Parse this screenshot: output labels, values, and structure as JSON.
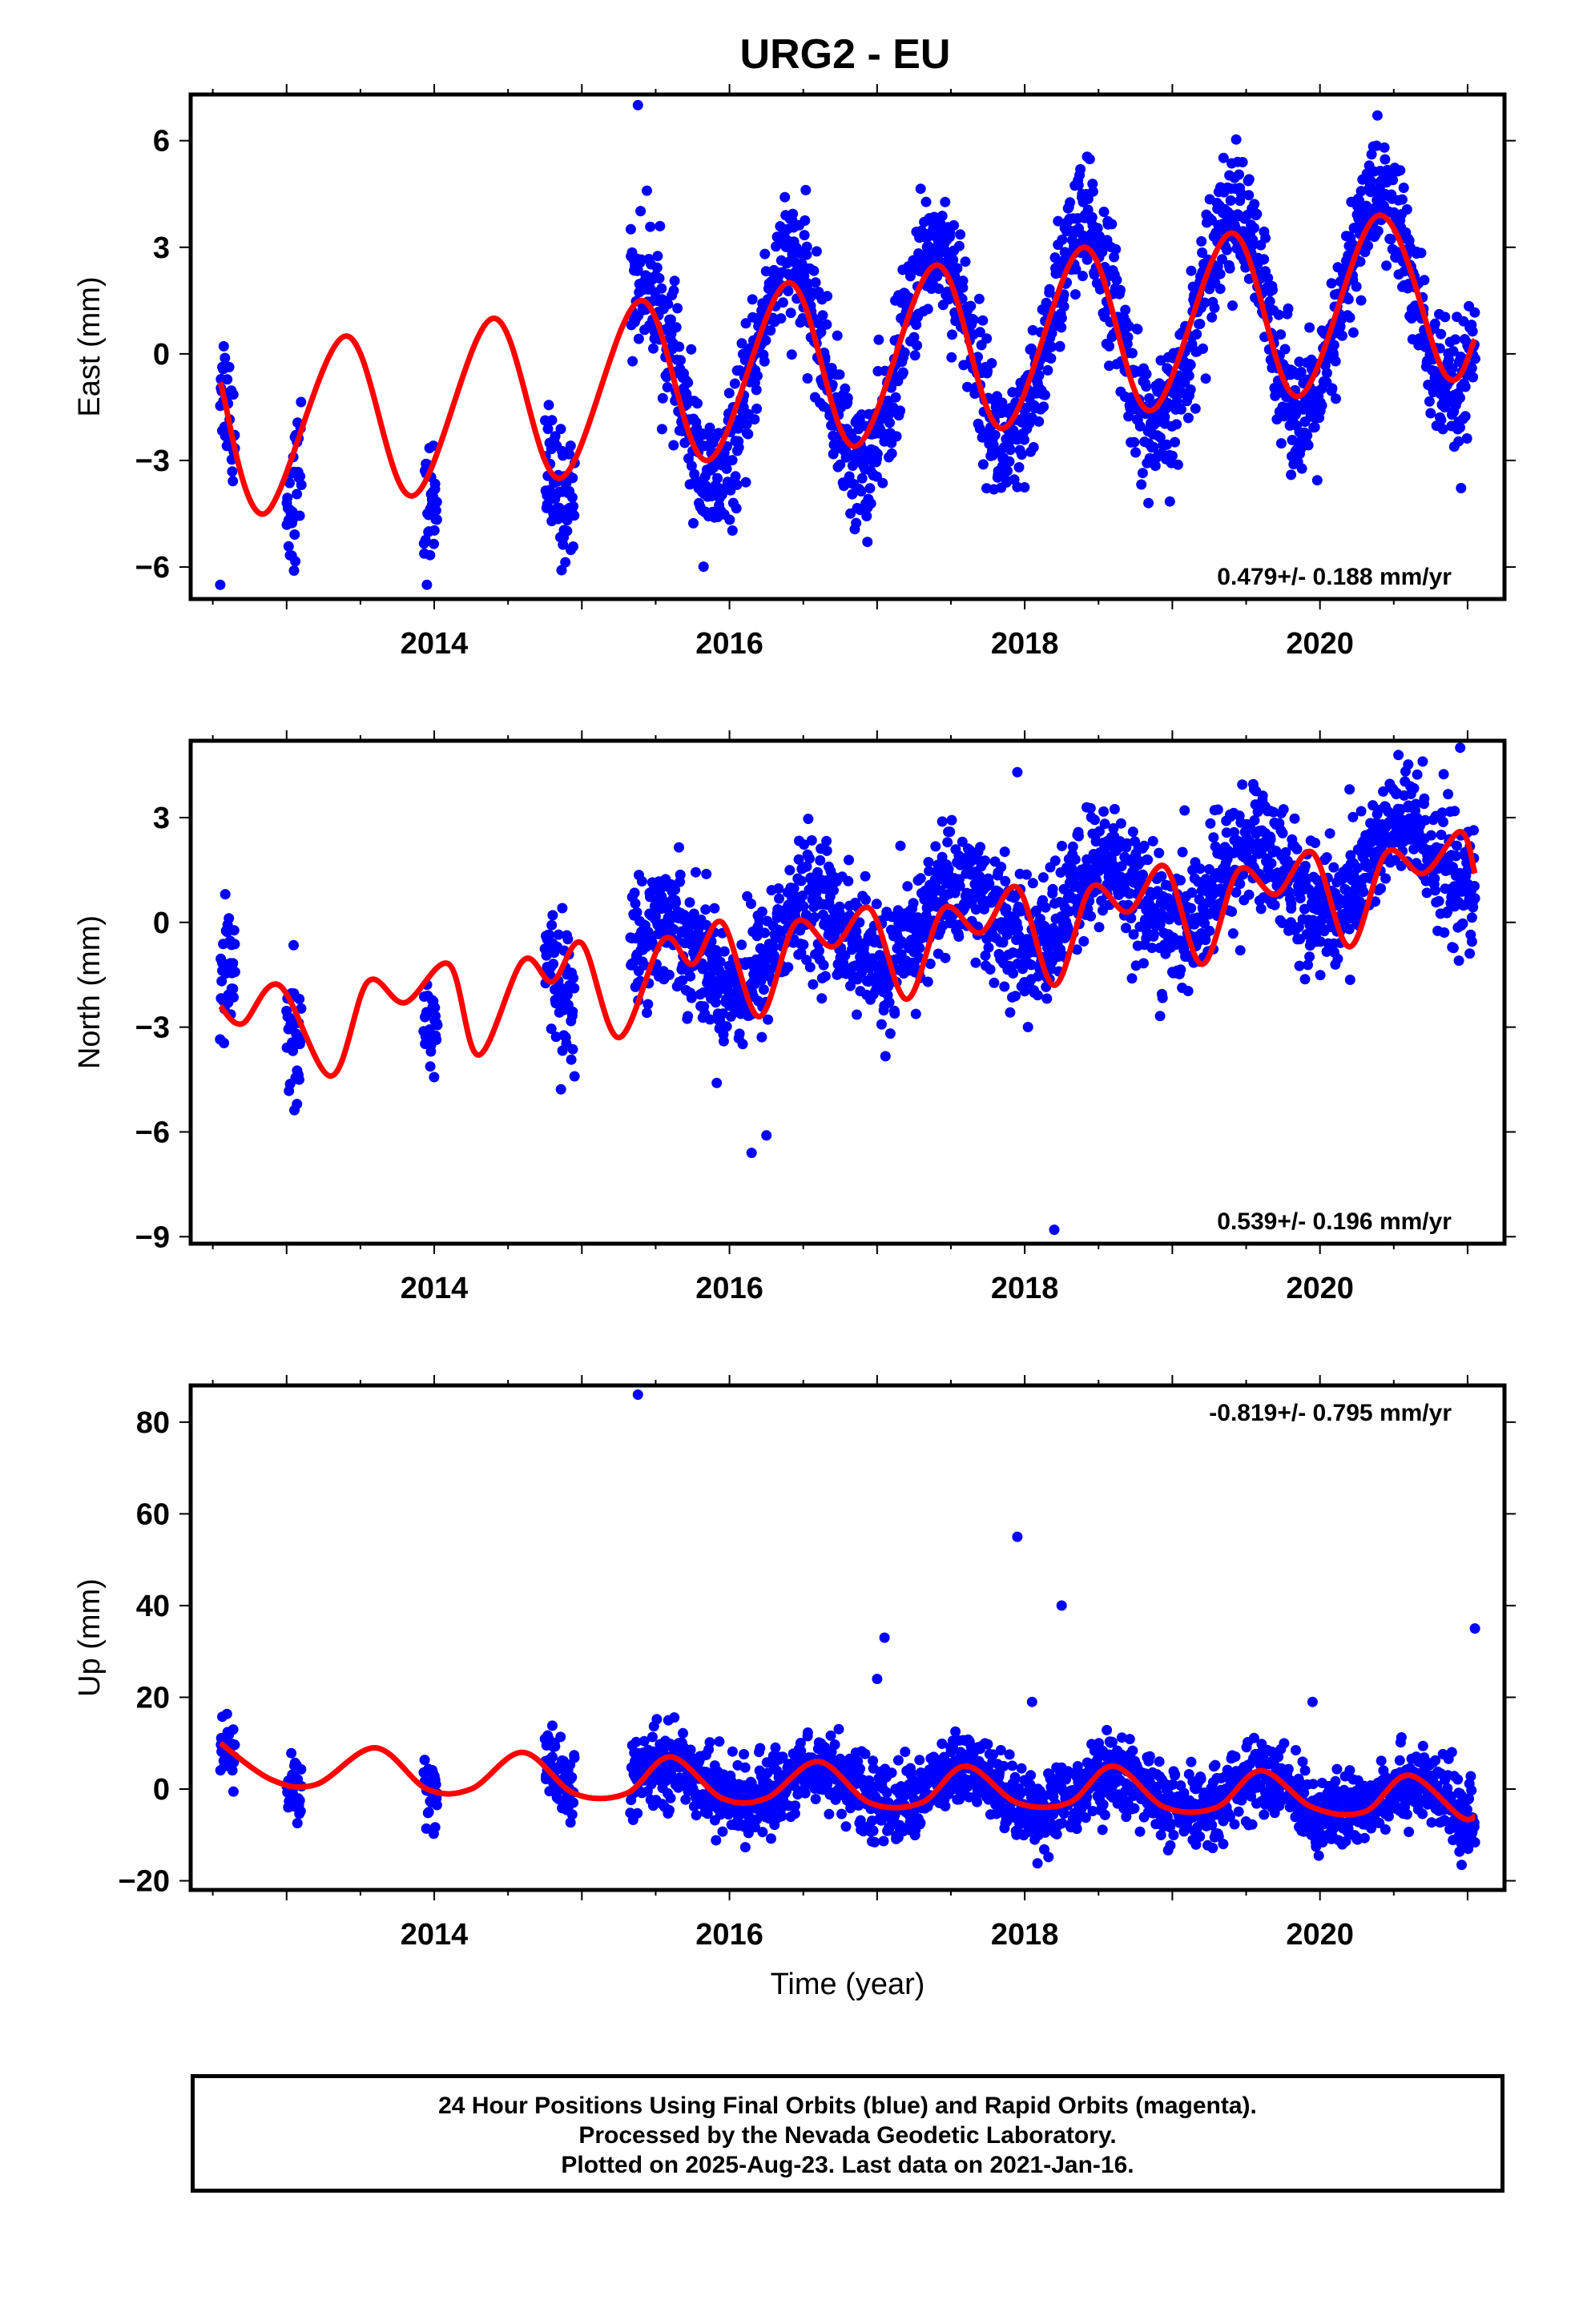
{
  "title": "URG2 - EU",
  "footer": {
    "line1": "24 Hour Positions Using Final Orbits (blue) and Rapid Orbits (magenta).",
    "line2": "Processed by the Nevada Geodetic Laboratory.",
    "line3": "Plotted on 2025-Aug-23. Last data on 2021-Jan-16."
  },
  "colors": {
    "points": "#0000ff",
    "fit": "#ff0000",
    "axis": "#000000"
  },
  "chart_data": [
    {
      "type": "scatter",
      "ylabel": "East (mm)",
      "xlabel": "",
      "rate": "0.479+/- 0.188 mm/yr",
      "rate_position": "bottom-right",
      "xlim": [
        2012.35,
        2021.25
      ],
      "ylim": [
        -6.9,
        7.3
      ],
      "xticks": [
        2014,
        2016,
        2018,
        2020
      ],
      "yticks": [
        -6,
        -3,
        0,
        3,
        6
      ],
      "data_segments": [
        [
          2012.55,
          2012.65
        ],
        [
          2013.0,
          2013.1
        ],
        [
          2013.93,
          2014.02
        ],
        [
          2014.75,
          2014.95
        ],
        [
          2015.33,
          2021.05
        ]
      ],
      "model": {
        "t0": 2016.9,
        "offset": -0.2,
        "rate": 0.479,
        "amp": 3.0,
        "phase": 2016.4
      },
      "noise_sd": 0.9,
      "outliers": [
        [
          2015.38,
          7.0
        ],
        [
          2013.05,
          -6.1
        ],
        [
          2012.55,
          -6.5
        ]
      ],
      "fit_curve": [
        [
          2012.55,
          -0.8
        ],
        [
          2012.85,
          -4.5
        ],
        [
          2013.4,
          0.5
        ],
        [
          2013.85,
          -4.0
        ],
        [
          2014.4,
          1.0
        ],
        [
          2014.85,
          -3.5
        ],
        [
          2015.4,
          1.5
        ],
        [
          2015.85,
          -3.0
        ],
        [
          2016.4,
          2.0
        ],
        [
          2016.85,
          -2.6
        ],
        [
          2017.4,
          2.5
        ],
        [
          2017.85,
          -2.1
        ],
        [
          2018.4,
          3.0
        ],
        [
          2018.85,
          -1.6
        ],
        [
          2019.4,
          3.4
        ],
        [
          2019.85,
          -1.2
        ],
        [
          2020.4,
          3.9
        ],
        [
          2020.85,
          -0.6
        ],
        [
          2021.05,
          0.4
        ]
      ]
    },
    {
      "type": "scatter",
      "ylabel": "North (mm)",
      "xlabel": "",
      "rate": "0.539+/- 0.196 mm/yr",
      "rate_position": "bottom-right",
      "xlim": [
        2012.35,
        2021.25
      ],
      "ylim": [
        -9.2,
        5.2
      ],
      "xticks": [
        2014,
        2016,
        2018,
        2020
      ],
      "yticks": [
        -9,
        -6,
        -3,
        0,
        3
      ],
      "data_segments": [
        [
          2012.55,
          2012.65
        ],
        [
          2013.0,
          2013.1
        ],
        [
          2013.93,
          2014.02
        ],
        [
          2014.75,
          2014.95
        ],
        [
          2015.33,
          2021.05
        ]
      ],
      "model": {
        "t0": 2016.9,
        "offset": -0.3,
        "rate": 0.539,
        "amp": 1.1,
        "phase": 2016.55
      },
      "noise_sd": 0.9,
      "outliers": [
        [
          2018.2,
          -8.8
        ],
        [
          2016.15,
          -6.6
        ],
        [
          2016.25,
          -6.1
        ],
        [
          2013.07,
          -5.2
        ],
        [
          2017.95,
          4.3
        ],
        [
          2020.95,
          5.0
        ]
      ],
      "fit_curve": [
        [
          2012.55,
          -2.4
        ],
        [
          2012.7,
          -2.9
        ],
        [
          2012.95,
          -1.8
        ],
        [
          2013.3,
          -4.4
        ],
        [
          2013.55,
          -1.7
        ],
        [
          2013.8,
          -2.3
        ],
        [
          2014.1,
          -1.2
        ],
        [
          2014.3,
          -3.8
        ],
        [
          2014.6,
          -1.1
        ],
        [
          2014.8,
          -1.7
        ],
        [
          2015.0,
          -0.6
        ],
        [
          2015.25,
          -3.3
        ],
        [
          2015.55,
          -0.5
        ],
        [
          2015.75,
          -1.2
        ],
        [
          2015.95,
          0.0
        ],
        [
          2016.2,
          -2.7
        ],
        [
          2016.45,
          0.0
        ],
        [
          2016.7,
          -0.7
        ],
        [
          2016.95,
          0.4
        ],
        [
          2017.2,
          -2.2
        ],
        [
          2017.45,
          0.4
        ],
        [
          2017.7,
          -0.3
        ],
        [
          2017.95,
          1.0
        ],
        [
          2018.2,
          -1.8
        ],
        [
          2018.45,
          1.0
        ],
        [
          2018.7,
          0.3
        ],
        [
          2018.95,
          1.6
        ],
        [
          2019.2,
          -1.2
        ],
        [
          2019.45,
          1.5
        ],
        [
          2019.7,
          0.8
        ],
        [
          2019.95,
          2.0
        ],
        [
          2020.2,
          -0.7
        ],
        [
          2020.45,
          2.0
        ],
        [
          2020.7,
          1.4
        ],
        [
          2020.95,
          2.6
        ],
        [
          2021.05,
          1.4
        ]
      ]
    },
    {
      "type": "scatter",
      "ylabel": "Up (mm)",
      "xlabel": "Time (year)",
      "rate": "-0.819+/- 0.795 mm/yr",
      "rate_position": "top-right",
      "xlim": [
        2012.35,
        2021.25
      ],
      "ylim": [
        -22,
        88
      ],
      "xticks": [
        2014,
        2016,
        2018,
        2020
      ],
      "yticks": [
        -20,
        0,
        20,
        40,
        60,
        80
      ],
      "data_segments": [
        [
          2012.55,
          2012.65
        ],
        [
          2013.0,
          2013.1
        ],
        [
          2013.93,
          2014.02
        ],
        [
          2014.75,
          2014.95
        ],
        [
          2015.33,
          2021.05
        ]
      ],
      "model": {
        "t0": 2016.9,
        "offset": 0.5,
        "rate": -0.819,
        "amp": 4.0,
        "phase": 2016.6
      },
      "noise_sd": 4.0,
      "outliers": [
        [
          2015.38,
          86
        ],
        [
          2017.95,
          55
        ],
        [
          2018.25,
          40
        ],
        [
          2017.05,
          33
        ],
        [
          2017.0,
          24
        ],
        [
          2021.05,
          35
        ],
        [
          2018.05,
          19
        ],
        [
          2019.95,
          19
        ]
      ],
      "fit_curve": [
        [
          2012.55,
          10
        ],
        [
          2012.9,
          2
        ],
        [
          2013.2,
          1
        ],
        [
          2013.6,
          9
        ],
        [
          2013.95,
          0
        ],
        [
          2014.25,
          0
        ],
        [
          2014.6,
          8
        ],
        [
          2014.95,
          -1
        ],
        [
          2015.3,
          -1
        ],
        [
          2015.6,
          7
        ],
        [
          2015.95,
          -2
        ],
        [
          2016.25,
          -2
        ],
        [
          2016.6,
          6
        ],
        [
          2016.95,
          -3
        ],
        [
          2017.3,
          -3
        ],
        [
          2017.6,
          5
        ],
        [
          2017.95,
          -3
        ],
        [
          2018.3,
          -3
        ],
        [
          2018.6,
          5
        ],
        [
          2018.95,
          -4
        ],
        [
          2019.3,
          -4
        ],
        [
          2019.6,
          4
        ],
        [
          2019.95,
          -4
        ],
        [
          2020.3,
          -5
        ],
        [
          2020.6,
          3
        ],
        [
          2020.95,
          -6
        ],
        [
          2021.05,
          -6
        ]
      ]
    }
  ]
}
